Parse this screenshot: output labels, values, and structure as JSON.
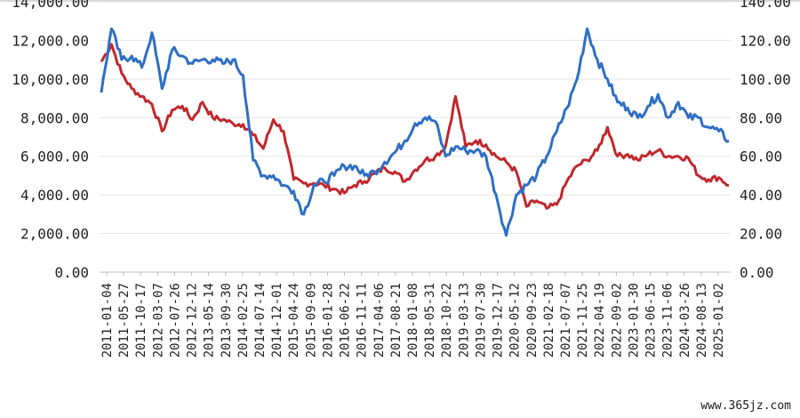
{
  "chart_data": {
    "type": "line",
    "left_axis": {
      "ticks": [
        "0.00",
        "2,000.00",
        "4,000.00",
        "6,000.00",
        "8,000.00",
        "10,000.00",
        "12,000.00",
        "14,000.00"
      ],
      "ylim": [
        0,
        14000
      ]
    },
    "right_axis": {
      "ticks": [
        "0.00",
        "20.00",
        "40.00",
        "60.00",
        "80.00",
        "100.00",
        "120.00",
        "140.00"
      ],
      "ylim": [
        0,
        140
      ]
    },
    "x_ticks": [
      "2011-01-04",
      "2011-05-27",
      "2011-10-17",
      "2012-03-07",
      "2012-07-26",
      "2012-12-12",
      "2013-05-14",
      "2013-09-30",
      "2014-02-25",
      "2014-07-14",
      "2014-12-01",
      "2015-04-24",
      "2015-09-09",
      "2016-01-28",
      "2016-06-22",
      "2016-11-11",
      "2017-04-06",
      "2017-08-21",
      "2018-01-08",
      "2018-05-31",
      "2018-10-22",
      "2019-03-13",
      "2019-07-30",
      "2019-12-17",
      "2020-05-12",
      "2020-09-23",
      "2021-02-18",
      "2021-07-07",
      "2021-11-25",
      "2022-04-19",
      "2022-09-02",
      "2023-01-30",
      "2023-06-15",
      "2023-11-06",
      "2024-03-26",
      "2024-08-13",
      "2025-01-02"
    ],
    "series": [
      {
        "axis": "left",
        "color": "#c0282d",
        "values": [
          10900,
          11800,
          10300,
          9500,
          9100,
          8700,
          7300,
          8400,
          8600,
          7900,
          8800,
          8000,
          7900,
          7700,
          7650,
          7100,
          6400,
          7900,
          7300,
          4800,
          4600,
          4600,
          4500,
          4300,
          4100,
          4500,
          4700,
          5100,
          5400,
          5200,
          4700,
          5300,
          5800,
          6000,
          6500,
          9100,
          6500,
          6800,
          6600,
          6000,
          5700,
          5200,
          3400,
          3700,
          3300,
          3500,
          4700,
          5500,
          5800,
          6300,
          7500,
          6000,
          6100,
          5800,
          6100,
          6300,
          6000,
          6000,
          5900,
          5000,
          4800,
          4900,
          4500
        ]
      },
      {
        "axis": "right",
        "color": "#2f6fc4",
        "values": [
          93,
          126,
          110,
          112,
          106,
          124,
          95,
          115,
          112,
          108,
          110,
          110,
          108,
          110,
          102,
          58,
          50,
          50,
          45,
          42,
          30,
          45,
          47,
          50,
          55,
          55,
          50,
          52,
          57,
          62,
          68,
          77,
          80,
          78,
          60,
          65,
          63,
          63,
          60,
          40,
          19,
          40,
          45,
          50,
          60,
          73,
          85,
          100,
          126,
          110,
          100,
          88,
          85,
          80,
          86,
          92,
          80,
          88,
          80,
          80,
          75,
          73,
          68
        ]
      }
    ],
    "grid": true,
    "legend": "bottom"
  },
  "watermark": "www.365jz.com"
}
